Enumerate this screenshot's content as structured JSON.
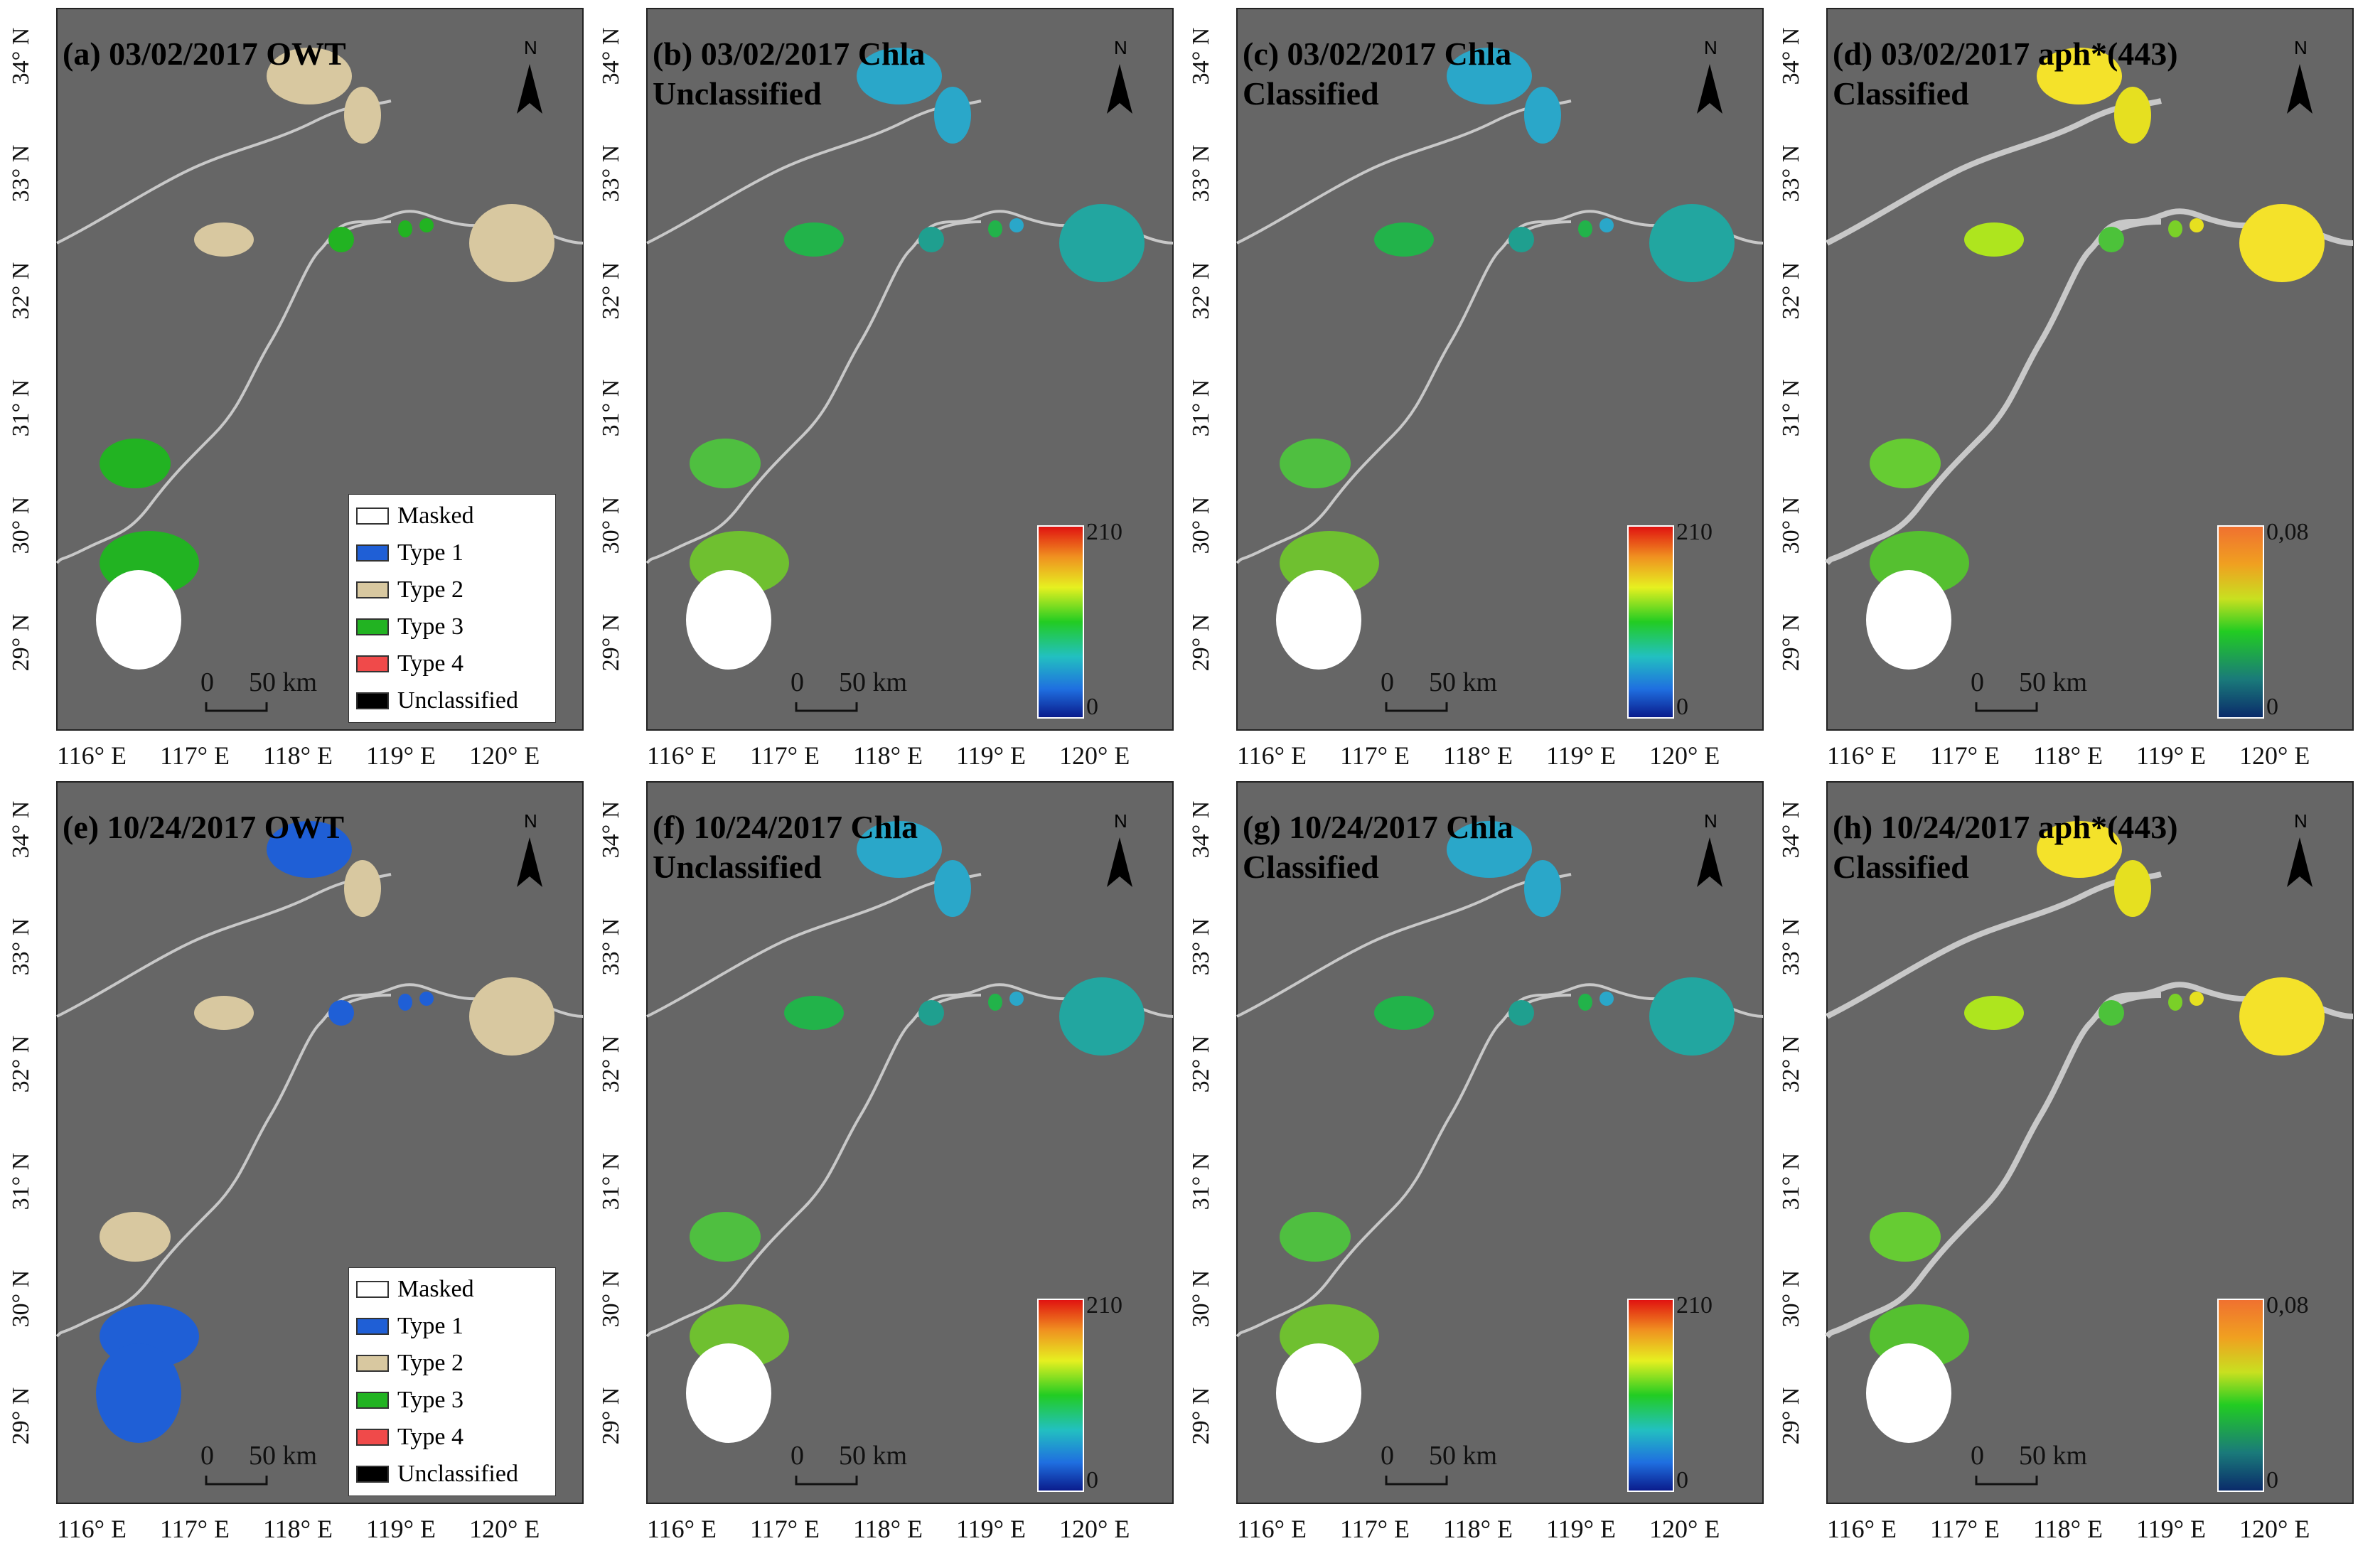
{
  "panels": [
    {
      "title_line1": "(a) 03/02/2017 OWT",
      "title_line2": "",
      "kind": "owt",
      "date": "spring"
    },
    {
      "title_line1": "(b) 03/02/2017 Chla",
      "title_line2": "Unclassified",
      "kind": "chla",
      "date": "spring"
    },
    {
      "title_line1": "(c) 03/02/2017 Chla",
      "title_line2": "Classified",
      "kind": "chla",
      "date": "spring"
    },
    {
      "title_line1": "(d) 03/02/2017 aph*(443)",
      "title_line2": "Classified",
      "kind": "aph",
      "date": "spring"
    },
    {
      "title_line1": "(e) 10/24/2017 OWT",
      "title_line2": "",
      "kind": "owt",
      "date": "autumn"
    },
    {
      "title_line1": "(f) 10/24/2017 Chla",
      "title_line2": "Unclassified",
      "kind": "chla",
      "date": "autumn"
    },
    {
      "title_line1": "(g) 10/24/2017 Chla",
      "title_line2": "Classified",
      "kind": "chla",
      "date": "autumn"
    },
    {
      "title_line1": "(h) 10/24/2017 aph*(443)",
      "title_line2": "Classified",
      "kind": "aph",
      "date": "autumn"
    }
  ],
  "lat_ticks": [
    "34° N",
    "33° N",
    "32° N",
    "31° N",
    "30° N",
    "29° N"
  ],
  "lon_ticks": [
    "116° E",
    "117° E",
    "118° E",
    "119° E",
    "120° E"
  ],
  "north_label": "N",
  "scale_bar": {
    "zero": "0",
    "distance": "50 km"
  },
  "legend": [
    {
      "label": "Masked",
      "color": "#ffffff"
    },
    {
      "label": "Type 1",
      "color": "#1f5fd6"
    },
    {
      "label": "Type 2",
      "color": "#d8c8a0"
    },
    {
      "label": "Type 3",
      "color": "#22b322"
    },
    {
      "label": "Type 4",
      "color": "#f04a4a"
    },
    {
      "label": "Unclassified",
      "color": "#000000"
    }
  ],
  "colorbars": {
    "chla": {
      "max": "210",
      "min": "0"
    },
    "aph": {
      "max": "0,08",
      "min": "0"
    }
  },
  "colors": {
    "background": "#666666",
    "river": "#c8c8c8"
  }
}
